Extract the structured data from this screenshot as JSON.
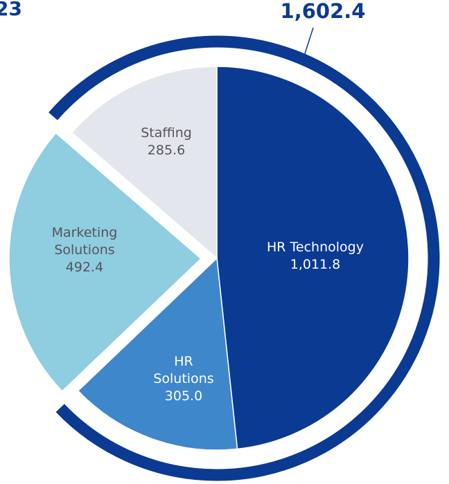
{
  "chart_data": {
    "type": "pie",
    "title": "23",
    "categories": [
      "HR Technology",
      "HR Solutions",
      "Marketing Solutions",
      "Staffing"
    ],
    "values": [
      1011.8,
      305.0,
      492.4,
      285.6
    ],
    "value_labels": [
      "1,011.8",
      "305.0",
      "492.4",
      "285.6"
    ],
    "colors": [
      "#0b3a93",
      "#3f87cb",
      "#8fcde1",
      "#e3e6ec"
    ],
    "exploded": "Marketing Solutions",
    "total": 1602.4,
    "total_label": "1,602.4",
    "total_color": "#0b3a93"
  }
}
